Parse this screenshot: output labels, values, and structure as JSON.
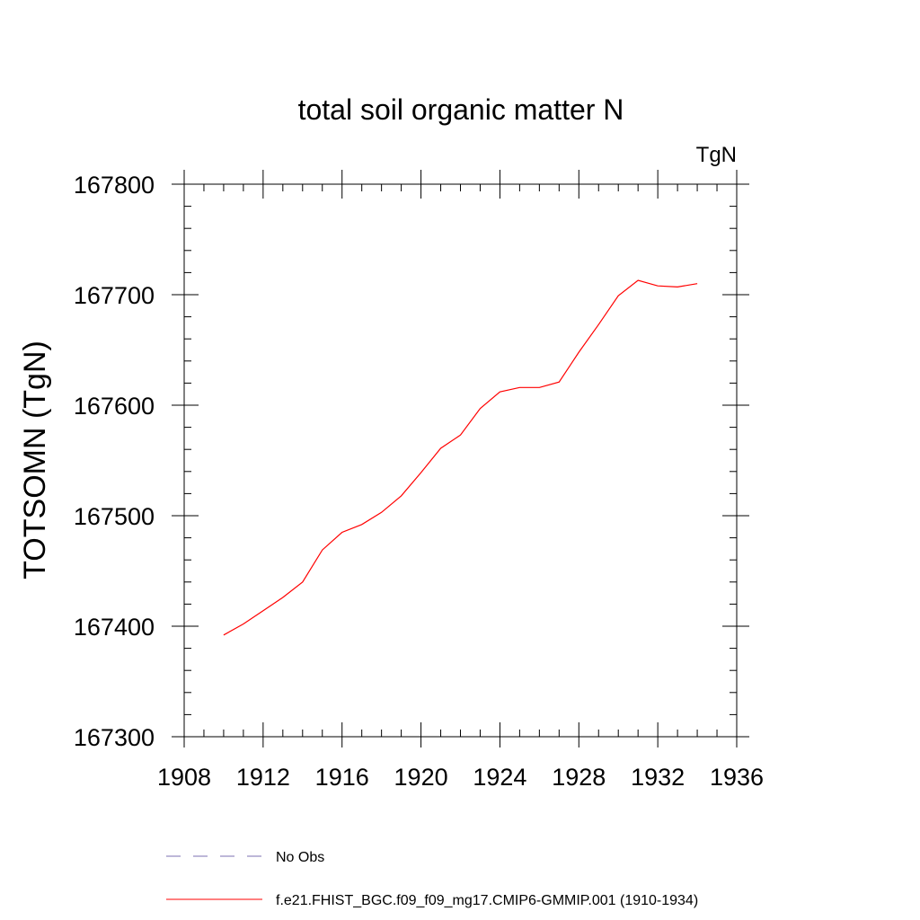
{
  "chart_data": {
    "type": "line",
    "title": "total soil organic matter N",
    "units_label": "TgN",
    "xlabel": "",
    "ylabel": "TOTSOMN  (TgN)",
    "xlim": [
      1908,
      1936
    ],
    "ylim": [
      167300,
      167800
    ],
    "x_ticks": [
      1908,
      1912,
      1916,
      1920,
      1924,
      1928,
      1932,
      1936
    ],
    "x_tick_labels": [
      "1908",
      "1912",
      "1916",
      "1920",
      "1924",
      "1928",
      "1932",
      "1936"
    ],
    "x_minor_step": 1,
    "y_ticks": [
      167300,
      167400,
      167500,
      167600,
      167700,
      167800
    ],
    "y_tick_labels": [
      "167300",
      "167400",
      "167500",
      "167600",
      "167700",
      "167800"
    ],
    "y_minor_step": 20,
    "grid": false,
    "legend_position": "bottom",
    "series": [
      {
        "name": "f.e21.FHIST_BGC.f09_f09_mg17.CMIP6-GMMIP.001 (1910-1934)",
        "color": "#ff0000",
        "style": "solid",
        "x": [
          1910,
          1911,
          1912,
          1913,
          1914,
          1915,
          1916,
          1917,
          1918,
          1919,
          1920,
          1921,
          1922,
          1923,
          1924,
          1925,
          1926,
          1927,
          1928,
          1929,
          1930,
          1931,
          1932,
          1933,
          1934
        ],
        "values": [
          167392,
          167402,
          167414,
          167426,
          167440,
          167469,
          167485,
          167492,
          167503,
          167518,
          167539,
          167561,
          167573,
          167597,
          167612,
          167616,
          167616,
          167621,
          167648,
          167673,
          167699,
          167713,
          167708,
          167707,
          167710
        ]
      },
      {
        "name": "No Obs",
        "color": "#7b6fb0",
        "style": "dashed",
        "x": [],
        "values": []
      }
    ]
  }
}
